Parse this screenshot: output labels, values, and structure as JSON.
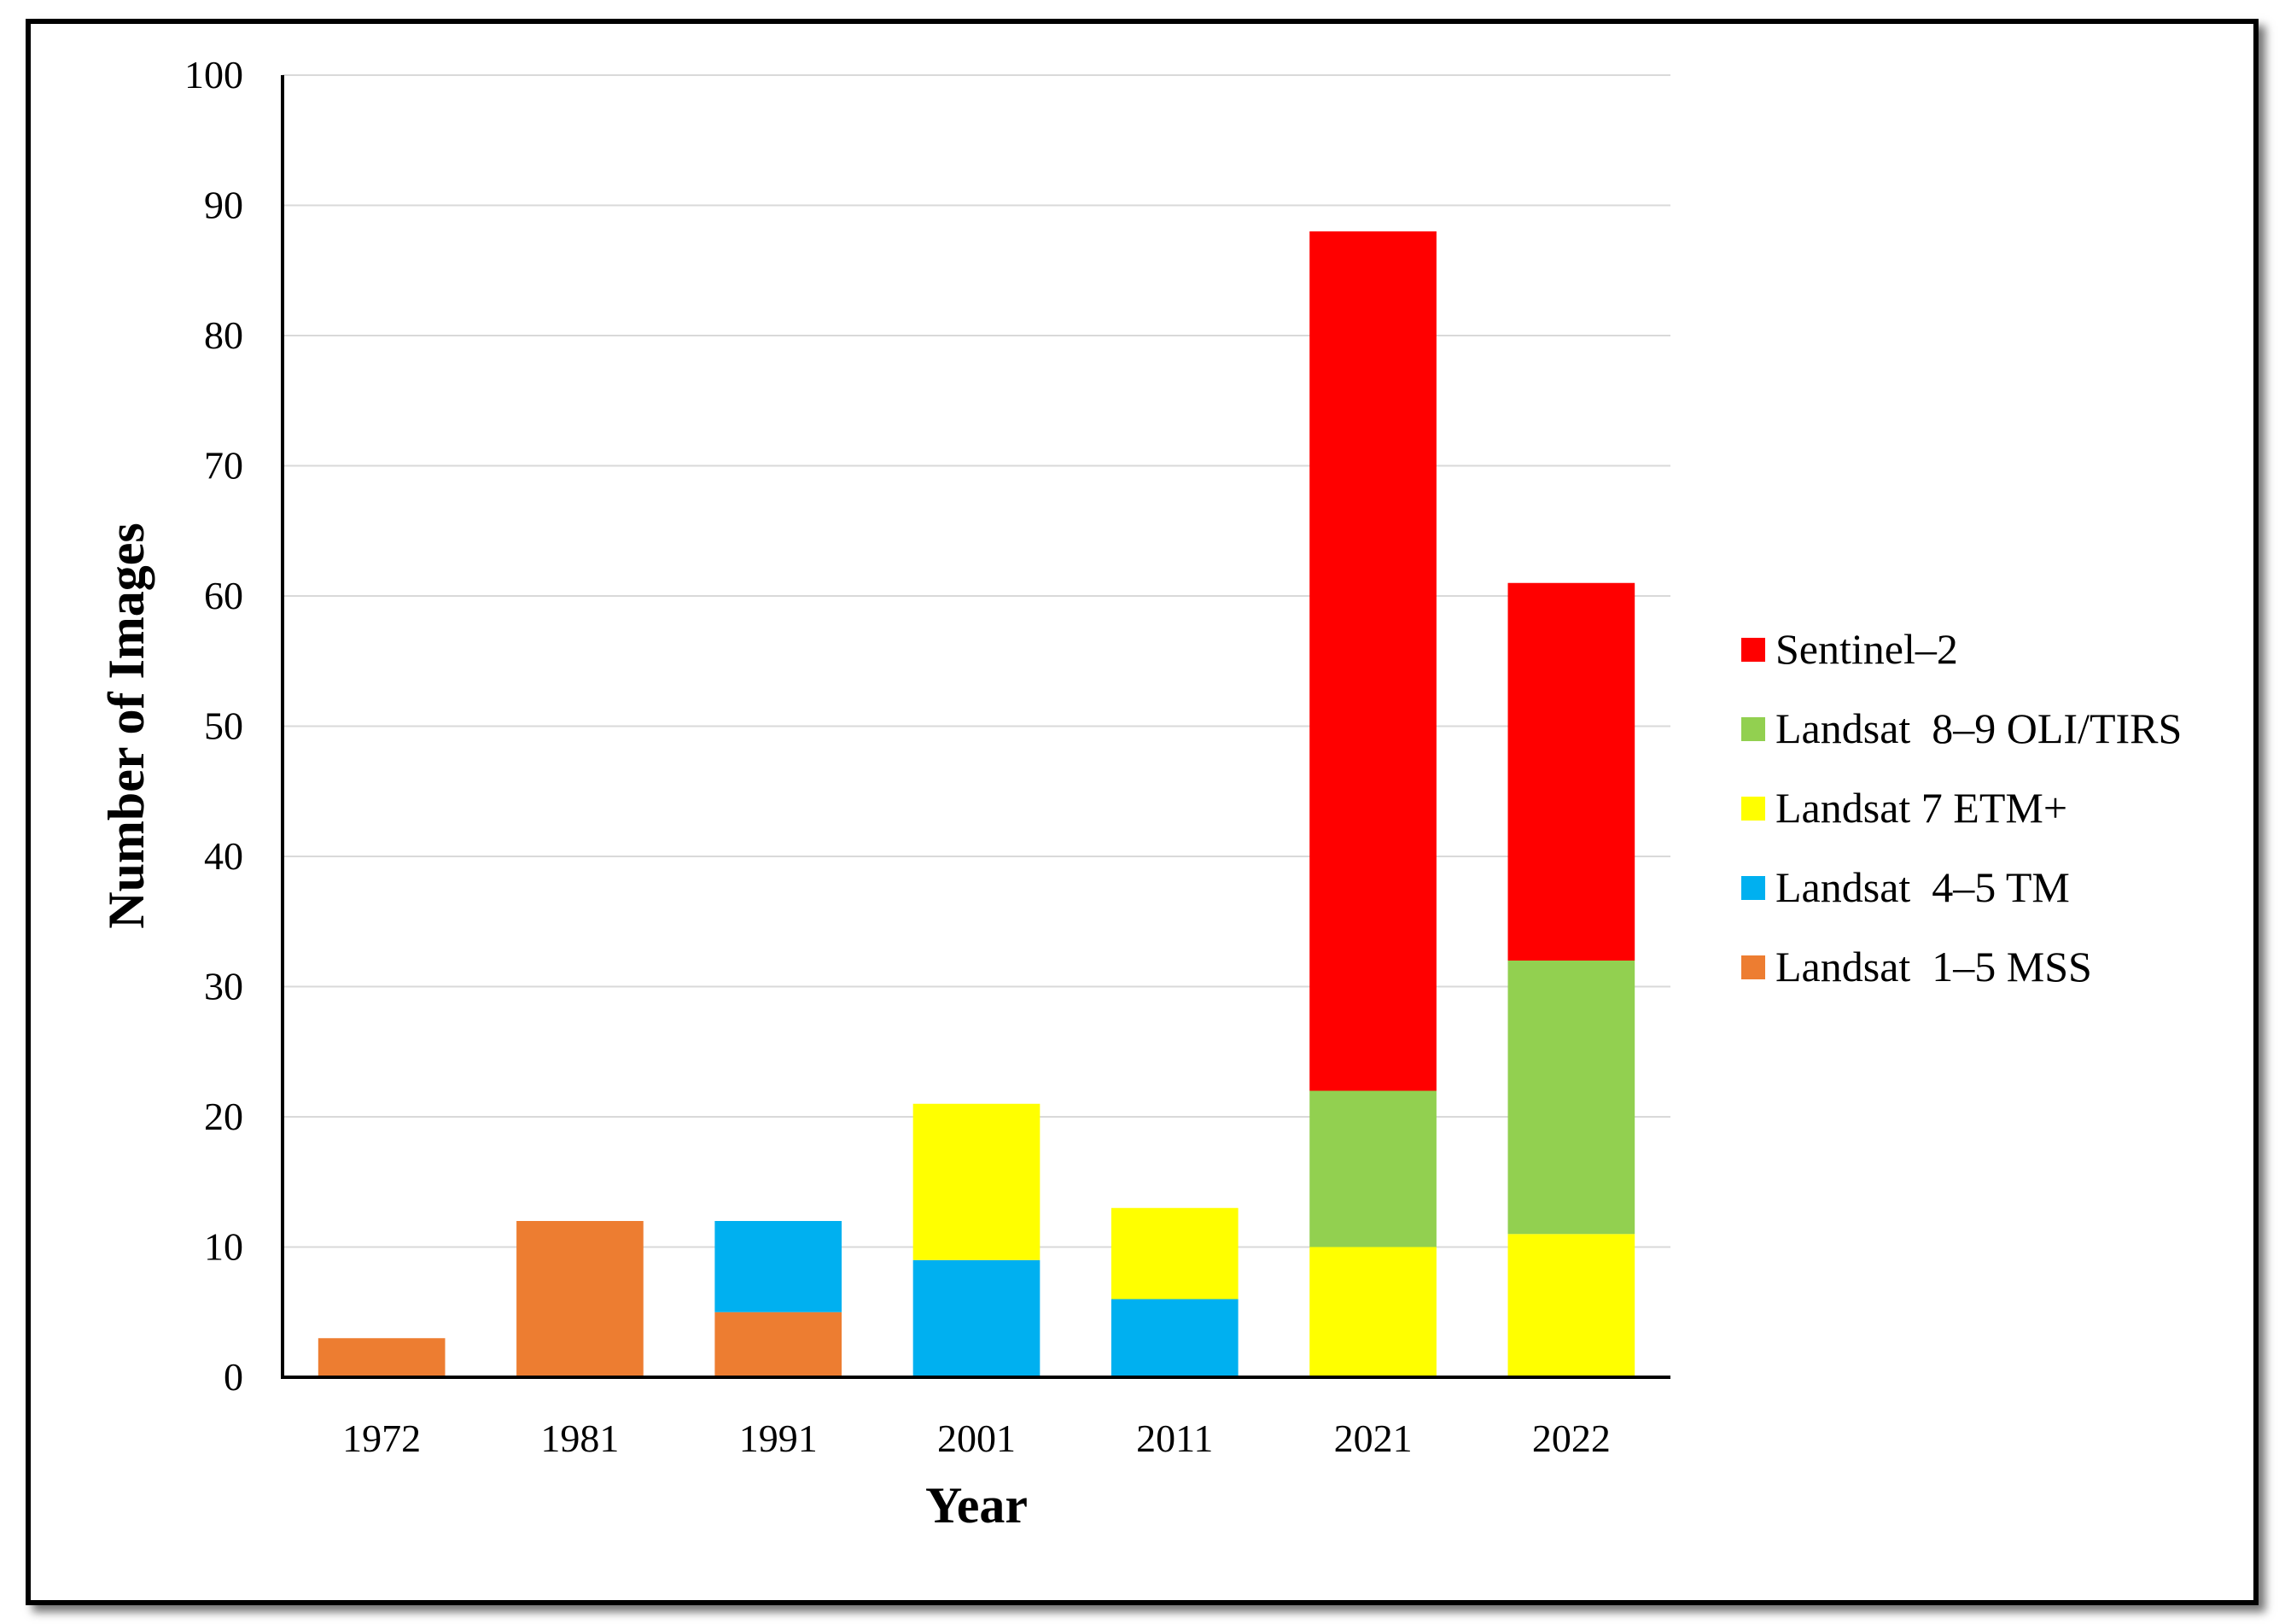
{
  "chart_data": {
    "type": "bar",
    "stacked": true,
    "title": "",
    "xlabel": "Year",
    "ylabel": "Number of Images",
    "ylim": [
      0,
      100
    ],
    "yticks": [
      0,
      10,
      20,
      30,
      40,
      50,
      60,
      70,
      80,
      90,
      100
    ],
    "grid": true,
    "legend_position": "right",
    "categories": [
      "1972",
      "1981",
      "1991",
      "2001",
      "2011",
      "2021",
      "2022"
    ],
    "series": [
      {
        "name": "Landsat  1–5 MSS",
        "color": "#ED7D31",
        "values": [
          3,
          12,
          5,
          0,
          0,
          0,
          0
        ]
      },
      {
        "name": "Landsat  4–5 TM",
        "color": "#00B0F0",
        "values": [
          0,
          0,
          7,
          9,
          6,
          0,
          0
        ]
      },
      {
        "name": "Landsat 7 ETM+",
        "color": "#FFFF00",
        "values": [
          0,
          0,
          0,
          12,
          7,
          10,
          11
        ]
      },
      {
        "name": "Landsat  8–9 OLI/TIRS",
        "color": "#92D050",
        "values": [
          0,
          0,
          0,
          0,
          0,
          12,
          21
        ]
      },
      {
        "name": "Sentinel–2",
        "color": "#FF0000",
        "values": [
          0,
          0,
          0,
          0,
          0,
          66,
          29
        ]
      }
    ]
  }
}
